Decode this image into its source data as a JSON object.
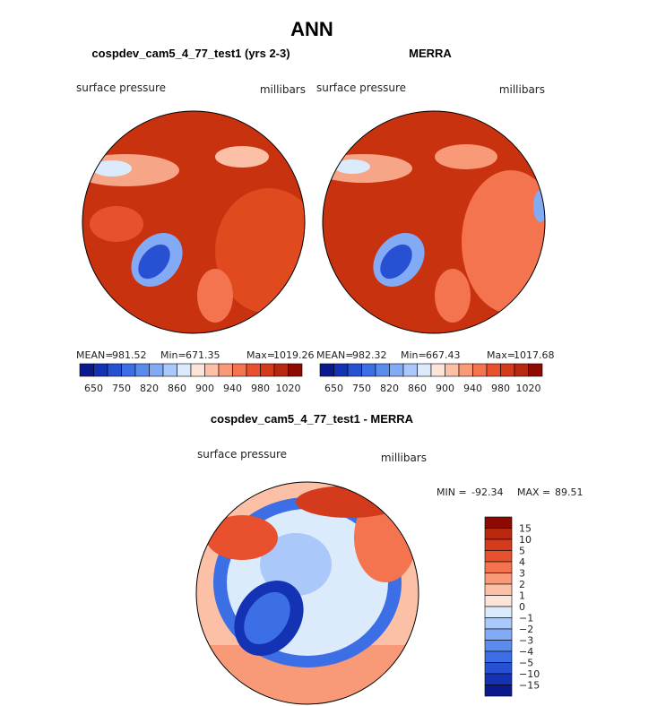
{
  "title": "ANN",
  "panels": [
    {
      "title": "cospdev_cam5_4_77_test1 (yrs 2-3)",
      "left_label": "surface pressure",
      "right_label": "millibars",
      "stats": [
        {
          "label": "MEAN=",
          "value": 981.52
        },
        {
          "label": "Min=",
          "value": 671.35
        },
        {
          "label": "Max=",
          "value": 1019.26
        }
      ]
    },
    {
      "title": "MERRA",
      "left_label": "surface pressure",
      "right_label": "millibars",
      "stats": [
        {
          "label": "MEAN=",
          "value": 982.32
        },
        {
          "label": "Min=",
          "value": 667.43
        },
        {
          "label": "Max=",
          "value": 1017.68
        }
      ]
    }
  ],
  "colorbar": {
    "labels": [
      650,
      750,
      820,
      860,
      900,
      940,
      980,
      1020
    ],
    "colors": [
      "#0a1a8c",
      "#1432b4",
      "#2850d2",
      "#3c6ee6",
      "#5a8cf0",
      "#82aaf5",
      "#aac8fa",
      "#dcebfc",
      "#fde4d8",
      "#fbc0a6",
      "#f89a78",
      "#f47450",
      "#e8502e",
      "#d43a1c",
      "#b8280e",
      "#8c0a00"
    ]
  },
  "difference": {
    "title": "cospdev_cam5_4_77_test1 - MERRA",
    "left_label": "surface pressure",
    "right_label": "millibars",
    "min_label": "MIN =",
    "min": -92.34,
    "max_label": "MAX =",
    "max": 89.51,
    "colorbar": {
      "labels": [
        15,
        10,
        5,
        4,
        3,
        2,
        1,
        0,
        "−1",
        "−2",
        "−3",
        "−4",
        "−5",
        "−10",
        "−15"
      ],
      "colors": [
        "#8c0a00",
        "#b8280e",
        "#d43a1c",
        "#e8502e",
        "#f47450",
        "#f89a78",
        "#fbc0a6",
        "#fde4d8",
        "#dcebfc",
        "#aac8fa",
        "#82aaf5",
        "#5a8cf0",
        "#3c6ee6",
        "#2850d2",
        "#1432b4",
        "#0a1a8c"
      ]
    }
  }
}
